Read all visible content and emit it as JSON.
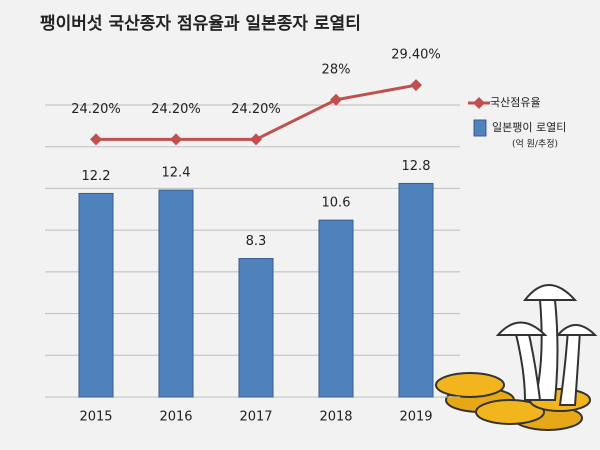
{
  "chart_data": {
    "type": "bar_line",
    "title": "팽이버섯 국산종자 점유율과 일본종자 로열티",
    "categories": [
      "2015",
      "2016",
      "2017",
      "2018",
      "2019"
    ],
    "series": [
      {
        "name": "일본팽이 로열티",
        "unit_note": "(억 원/추정)",
        "type": "bar",
        "color": "#4f81bd",
        "values": [
          12.2,
          12.4,
          8.3,
          10.6,
          12.8
        ]
      },
      {
        "name": "국산점유율",
        "type": "line",
        "axis": "y2",
        "color": "#c0504d",
        "values": [
          24.2,
          24.2,
          24.2,
          28,
          29.4
        ],
        "value_labels": [
          "24.20%",
          "24.20%",
          "24.20%",
          "28%",
          "29.40%"
        ]
      }
    ],
    "ylim": [
      0,
      17.5
    ],
    "yticks": [
      0,
      2.5,
      5,
      7.5,
      10,
      12.5,
      15,
      17.5
    ],
    "y2lim": [
      -0.5,
      27.5
    ],
    "grid": true
  }
}
